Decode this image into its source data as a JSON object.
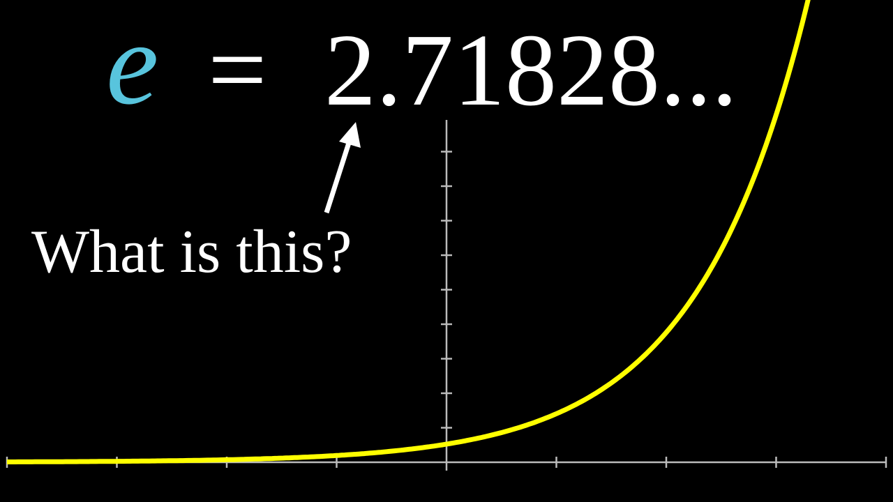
{
  "equation": {
    "symbol": "e",
    "equals": "=",
    "value": "2.71828..."
  },
  "annotation": "What is this?"
}
